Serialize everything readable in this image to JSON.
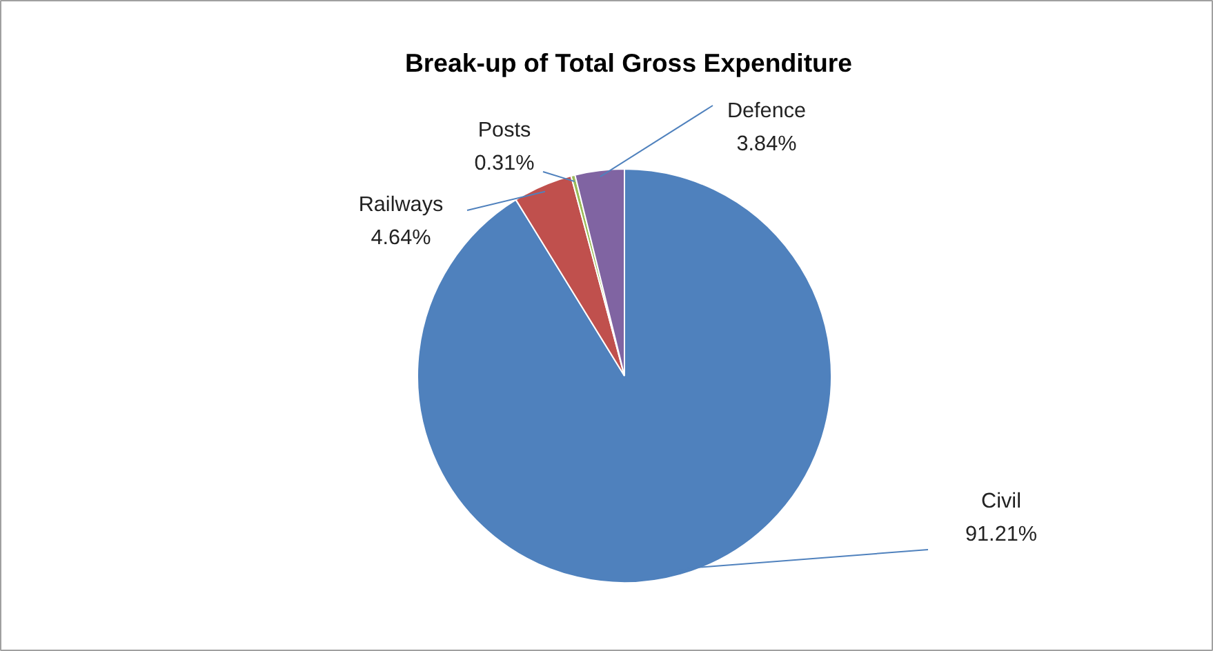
{
  "chart_data": {
    "type": "pie",
    "title": "Break-up of Total Gross Expenditure",
    "categories": [
      "Civil",
      "Railways",
      "Posts",
      "Defence"
    ],
    "values": [
      91.21,
      4.64,
      0.31,
      3.84
    ],
    "value_labels": [
      "91.21%",
      "4.64%",
      "0.31%",
      "3.84%"
    ],
    "colors": [
      "#4f81bd",
      "#c0504d",
      "#9bbb59",
      "#8064a2"
    ]
  }
}
